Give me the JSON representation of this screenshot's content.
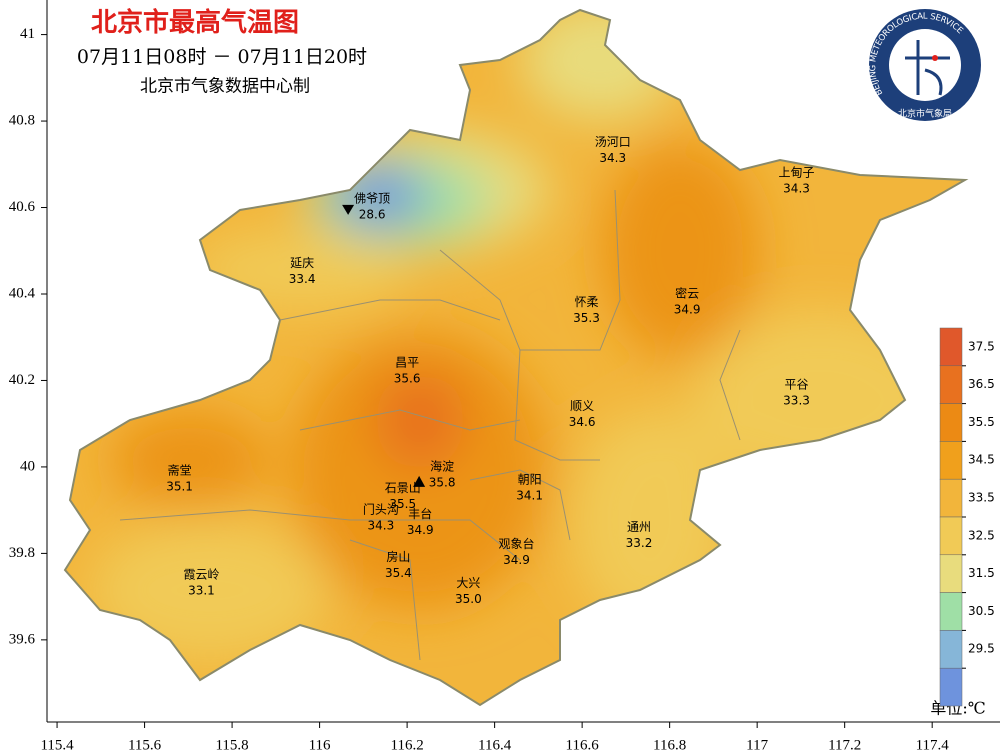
{
  "header": {
    "title": "北京市最高气温图",
    "time": "07月11日08时 － 07月11日20时",
    "source": "北京市气象数据中心制"
  },
  "logo": {
    "text_en": "BEIJING METEOROLOGICAL SERVICE",
    "text_zh": "北京市气象局"
  },
  "axes": {
    "xlim": [
      115.377,
      117.555
    ],
    "ylim": [
      39.41,
      41.08
    ],
    "xticks": [
      115.4,
      115.6,
      115.8,
      116,
      116.2,
      116.4,
      116.6,
      116.8,
      117,
      117.2,
      117.4
    ],
    "yticks": [
      39.6,
      39.8,
      40,
      40.2,
      40.4,
      40.6,
      40.8,
      41
    ]
  },
  "stations": [
    {
      "name": "汤河口",
      "value": 34.3,
      "lon": 116.67,
      "lat": 40.75
    },
    {
      "name": "上甸子",
      "value": 34.3,
      "lon": 117.09,
      "lat": 40.68
    },
    {
      "name": "佛爷顶",
      "value": 28.6,
      "lon": 116.12,
      "lat": 40.62,
      "marker": "min"
    },
    {
      "name": "延庆",
      "value": 33.4,
      "lon": 115.96,
      "lat": 40.47
    },
    {
      "name": "怀柔",
      "value": 35.3,
      "lon": 116.61,
      "lat": 40.38
    },
    {
      "name": "密云",
      "value": 34.9,
      "lon": 116.84,
      "lat": 40.4
    },
    {
      "name": "昌平",
      "value": 35.6,
      "lon": 116.2,
      "lat": 40.24
    },
    {
      "name": "平谷",
      "value": 33.3,
      "lon": 117.09,
      "lat": 40.19
    },
    {
      "name": "顺义",
      "value": 34.6,
      "lon": 116.6,
      "lat": 40.14
    },
    {
      "name": "斋堂",
      "value": 35.1,
      "lon": 115.68,
      "lat": 39.99
    },
    {
      "name": "海淀",
      "value": 35.8,
      "lon": 116.28,
      "lat": 40.0,
      "marker": "max"
    },
    {
      "name": "石景山",
      "value": 35.5,
      "lon": 116.19,
      "lat": 39.95
    },
    {
      "name": "朝阳",
      "value": 34.1,
      "lon": 116.48,
      "lat": 39.97
    },
    {
      "name": "门头沟",
      "value": 34.3,
      "lon": 116.14,
      "lat": 39.9
    },
    {
      "name": "丰台",
      "value": 34.9,
      "lon": 116.23,
      "lat": 39.89
    },
    {
      "name": "通州",
      "value": 33.2,
      "lon": 116.73,
      "lat": 39.86
    },
    {
      "name": "观象台",
      "value": 34.9,
      "lon": 116.45,
      "lat": 39.82
    },
    {
      "name": "房山",
      "value": 35.4,
      "lon": 116.18,
      "lat": 39.79
    },
    {
      "name": "大兴",
      "value": {
        "value": 35,
        "label": "35.0"
      },
      "lon": 116.34,
      "lat": 39.73
    },
    {
      "name": "霞云岭",
      "value": 33.1,
      "lon": 115.73,
      "lat": 39.75
    }
  ],
  "legend": {
    "unit": "单位:℃",
    "levels": [
      37.5,
      36.5,
      35.5,
      34.5,
      33.5,
      32.5,
      31.5,
      30.5,
      29.5
    ],
    "colors": [
      "#e0582b",
      "#e8711f",
      "#ec8a14",
      "#f0a01c",
      "#f2b53b",
      "#f1ca56",
      "#e8dc7d",
      "#9fdfa6",
      "#86b6d8",
      "#6e93dd"
    ]
  }
}
